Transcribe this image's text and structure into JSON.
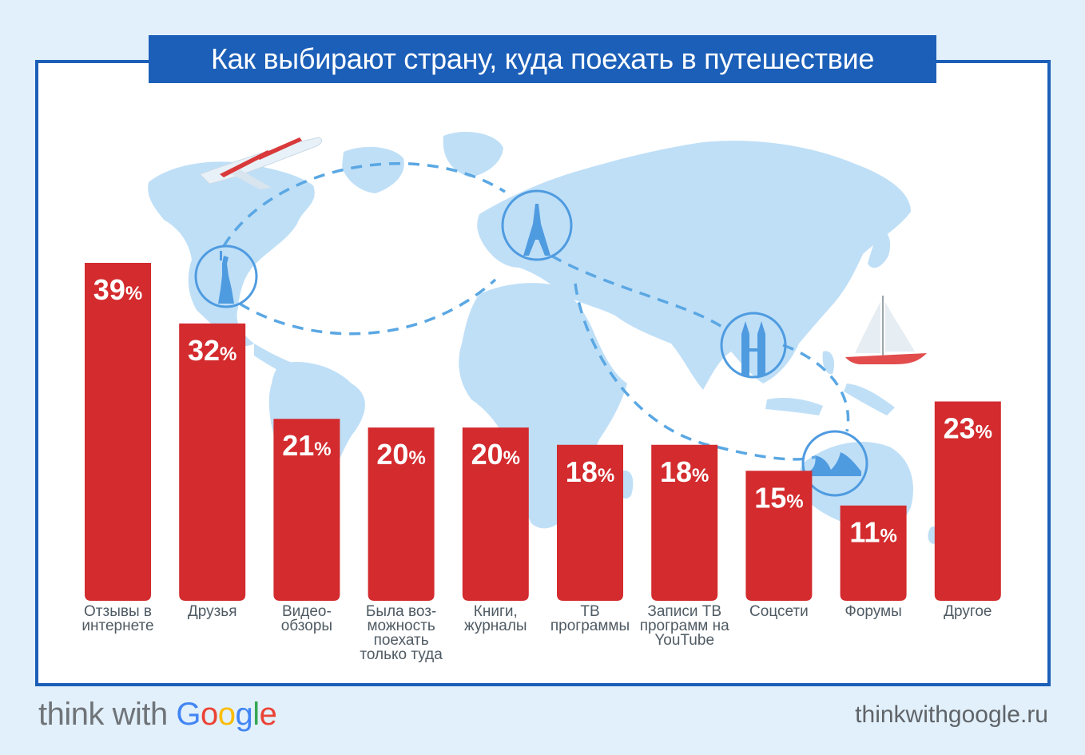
{
  "header": {
    "title": "Как выбирают страну, куда поехать в путешествие"
  },
  "footer": {
    "brand_prefix": "think with",
    "brand_google": [
      "G",
      "o",
      "o",
      "g",
      "l",
      "e"
    ],
    "brand_google_colors": [
      "#4285F4",
      "#EA4335",
      "#FBBC05",
      "#4285F4",
      "#34A853",
      "#EA4335"
    ],
    "url": "thinkwithgoogle.ru"
  },
  "colors": {
    "bar": "#d32b2e",
    "frame": "#1c5fb8",
    "map": "#bfdff7",
    "route": "#5aa7e3",
    "label": "#4f5a63"
  },
  "icons": [
    "airplane-icon",
    "statue-of-liberty-icon",
    "eiffel-tower-icon",
    "petronas-towers-icon",
    "sydney-opera-house-icon",
    "sailboat-icon"
  ],
  "chart_data": {
    "type": "bar",
    "title": "Как выбирают страну, куда поехать в путешествие",
    "unit": "%",
    "ylim": [
      0,
      39
    ],
    "categories": [
      [
        "Отзывы в",
        "интернете"
      ],
      [
        "Друзья"
      ],
      [
        "Видео-",
        "обзоры"
      ],
      [
        "Была воз-",
        "можность",
        "поехать",
        "только туда"
      ],
      [
        "Книги,",
        "журналы"
      ],
      [
        "ТВ",
        "программы"
      ],
      [
        "Записи ТВ",
        "программ на",
        "YouTube"
      ],
      [
        "Соцсети"
      ],
      [
        "Форумы"
      ],
      [
        "Другое"
      ]
    ],
    "values": [
      39,
      32,
      21,
      20,
      20,
      18,
      18,
      15,
      11,
      23
    ]
  }
}
